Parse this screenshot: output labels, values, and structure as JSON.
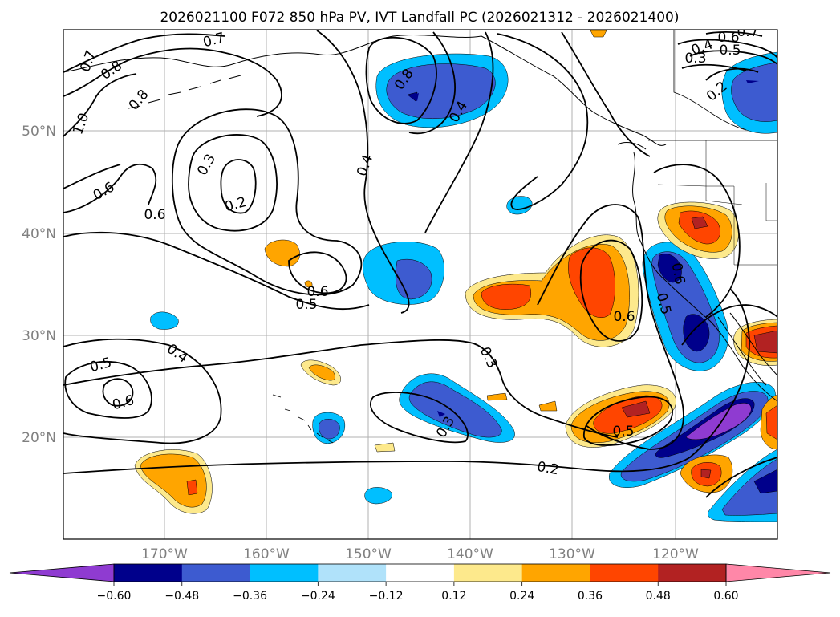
{
  "title": "2026021100 F072 850 hPa PV, IVT Landfall PC (2026021312 - 2026021400)",
  "lat_labels": [
    "20°N",
    "30°N",
    "40°N",
    "50°N"
  ],
  "lon_labels": [
    "170°W",
    "160°W",
    "150°W",
    "140°W",
    "130°W",
    "120°W"
  ],
  "colorbar": {
    "colors": [
      "#8f3bd1",
      "#00008b",
      "#3d5bd0",
      "#00bfff",
      "#b0e2fa",
      "#ffffff",
      "#fde98c",
      "#ffa500",
      "#ff4500",
      "#b22222",
      "#ff87a8"
    ],
    "tick_labels": [
      "−0.60",
      "−0.48",
      "−0.36",
      "−0.24",
      "−0.12",
      "0.12",
      "0.24",
      "0.36",
      "0.48",
      "0.60"
    ]
  },
  "contour_labels": [
    "0.7",
    "0.8",
    "0.8",
    "1.0",
    "0.6",
    "0.6",
    "0.3",
    "0.2",
    "0.7",
    "0.4",
    "0.8",
    "0.4",
    "0.6",
    "0.5",
    "0.5",
    "0.6",
    "0.4",
    "0.6",
    "0.3",
    "0.3",
    "0.5",
    "0.2",
    "0.6",
    "0.5",
    "0.4",
    "0.3",
    "0.2",
    "0.7",
    "0.5",
    "0.6"
  ]
}
